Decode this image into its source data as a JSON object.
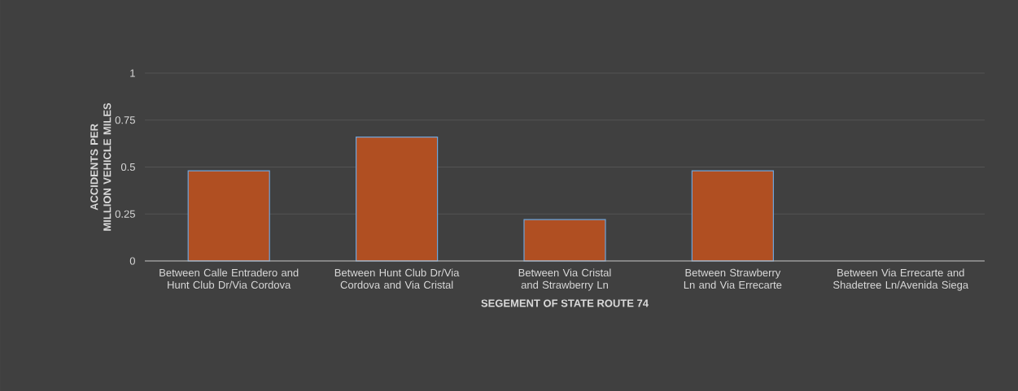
{
  "chart_data": {
    "type": "bar",
    "xlabel": "SEGEMENT OF STATE ROUTE 74",
    "ylabel": "ACCIDENTS PER MILLION VEHICLE MILES",
    "categories": [
      "Between Calle Entradero and Hunt Club Dr/Via Cordova",
      "Between Hunt Club Dr/Via Cordova and Via Cristal",
      "Between Via Cristal and Strawberry Ln",
      "Between Strawberry Ln and Via Errecarte",
      "Between Via Errecarte and Shadetree Ln/Avenida Siega"
    ],
    "values": [
      0.48,
      0.66,
      0.22,
      0.48,
      0
    ],
    "color": "#b04f22",
    "ylim": [
      0,
      1
    ],
    "yticks": [
      0,
      0.25,
      0.5,
      0.75,
      1
    ],
    "grid": "y"
  }
}
